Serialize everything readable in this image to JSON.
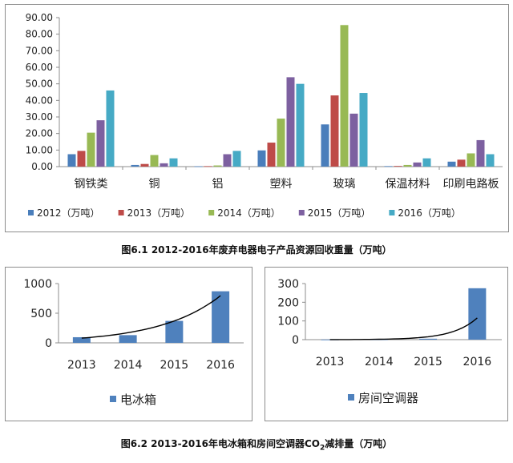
{
  "captions": {
    "fig1": "图6.1 2012-2016年废弃电器电子产品资源回收重量（万吨）",
    "fig2_prefix": "图6.2 2013-2016年电冰箱和房间空调器CO",
    "fig2_sub": "2",
    "fig2_suffix": "减排量（万吨）"
  },
  "colors": {
    "s2012": "#4a7ebb",
    "s2013": "#be4b48",
    "s2014": "#98b954",
    "s2015": "#7d60a0",
    "s2016": "#46aac5",
    "bar_small": "#4f81bd",
    "trend": "#000000"
  },
  "chart_data": [
    {
      "type": "bar",
      "categories": [
        "钢铁类",
        "铜",
        "铝",
        "塑料",
        "玻璃",
        "保温材料",
        "印刷电路板"
      ],
      "series": [
        {
          "name": "2012（万吨）",
          "values": [
            7.5,
            1.0,
            0.2,
            9.8,
            25.5,
            0.3,
            3.0
          ]
        },
        {
          "name": "2013（万吨）",
          "values": [
            9.5,
            1.6,
            0.3,
            14.5,
            43.0,
            0.4,
            4.2
          ]
        },
        {
          "name": "2014（万吨）",
          "values": [
            20.5,
            7.0,
            0.7,
            29.0,
            85.5,
            1.0,
            8.0
          ]
        },
        {
          "name": "2015（万吨）",
          "values": [
            28.0,
            2.0,
            7.5,
            54.0,
            32.0,
            2.5,
            16.0
          ]
        },
        {
          "name": "2016（万吨）",
          "values": [
            46.0,
            5.0,
            9.5,
            50.0,
            44.5,
            5.0,
            7.5
          ]
        }
      ],
      "ylim": [
        0,
        90
      ],
      "yticks": [
        "0.00",
        "10.00",
        "20.00",
        "30.00",
        "40.00",
        "50.00",
        "60.00",
        "70.00",
        "80.00",
        "90.00"
      ],
      "legend_position": "bottom",
      "grid": false
    },
    {
      "type": "bar",
      "categories": [
        "2013",
        "2014",
        "2015",
        "2016"
      ],
      "series": [
        {
          "name": "电冰箱",
          "values": [
            95,
            130,
            370,
            870
          ]
        }
      ],
      "trendline": "exponential",
      "ylim": [
        0,
        1000
      ],
      "yticks": [
        "0",
        "500",
        "1000"
      ],
      "legend_position": "bottom"
    },
    {
      "type": "bar",
      "categories": [
        "2013",
        "2014",
        "2015",
        "2016"
      ],
      "series": [
        {
          "name": "房间空调器",
          "values": [
            0.5,
            1.5,
            5,
            275
          ]
        }
      ],
      "trendline": "exponential",
      "ylim": [
        0,
        300
      ],
      "yticks": [
        "0",
        "100",
        "200",
        "300"
      ],
      "legend_position": "bottom"
    }
  ]
}
